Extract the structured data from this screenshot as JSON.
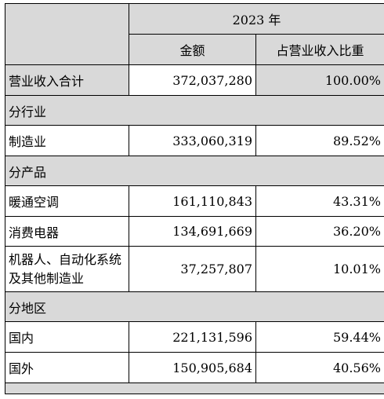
{
  "header": {
    "year": "2023 年",
    "col_amount": "金额",
    "col_ratio": "占营业收入比重"
  },
  "total": {
    "label": "营业收入合计",
    "amount": "372,037,280",
    "ratio": "100.00%"
  },
  "by_industry": {
    "section": "分行业",
    "rows": [
      {
        "label": "制造业",
        "amount": "333,060,319",
        "ratio": "89.52%"
      }
    ]
  },
  "by_product": {
    "section": "分产品",
    "rows": [
      {
        "label": "暖通空调",
        "amount": "161,110,843",
        "ratio": "43.31%"
      },
      {
        "label": "消费电器",
        "amount": "134,691,669",
        "ratio": "36.20%"
      },
      {
        "label": "机器人、自动化系统及其他制造业",
        "amount": "37,257,807",
        "ratio": "10.01%"
      }
    ]
  },
  "by_region": {
    "section": "分地区",
    "rows": [
      {
        "label": "国内",
        "amount": "221,131,596",
        "ratio": "59.44%"
      },
      {
        "label": "国外",
        "amount": "150,905,684",
        "ratio": "40.56%"
      }
    ]
  }
}
